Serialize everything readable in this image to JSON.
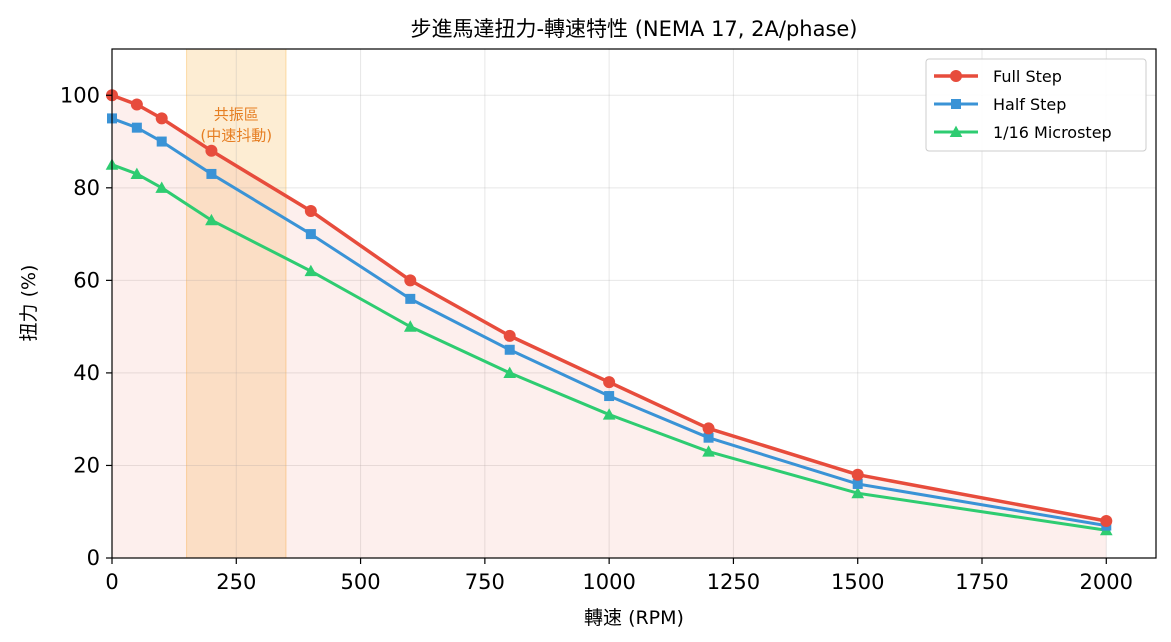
{
  "chart_data": {
    "type": "line",
    "title": "步進馬達扭力-轉速特性 (NEMA 17, 2A/phase)",
    "xlabel": "轉速 (RPM)",
    "ylabel": "扭力 (%)",
    "xlim": [
      0,
      2100
    ],
    "ylim": [
      0,
      110
    ],
    "xticks": [
      0,
      250,
      500,
      750,
      1000,
      1250,
      1500,
      1750,
      2000
    ],
    "yticks": [
      0,
      20,
      40,
      60,
      80,
      100
    ],
    "grid": true,
    "legend_position": "top-right",
    "x": [
      0,
      50,
      100,
      200,
      400,
      600,
      800,
      1000,
      1200,
      1500,
      2000
    ],
    "series": [
      {
        "name": "Full Step",
        "values": [
          100,
          98,
          95,
          88,
          75,
          60,
          48,
          38,
          28,
          18,
          8
        ],
        "color": "#e74c3c",
        "marker": "circle",
        "fill_under": true
      },
      {
        "name": "Half Step",
        "values": [
          95,
          93,
          90,
          83,
          70,
          56,
          45,
          35,
          26,
          16,
          7
        ],
        "color": "#3a93d6",
        "marker": "square"
      },
      {
        "name": "1/16 Microstep",
        "values": [
          85,
          83,
          80,
          73,
          62,
          50,
          40,
          31,
          23,
          14,
          6
        ],
        "color": "#2ecc71",
        "marker": "triangle"
      }
    ],
    "annotations": [
      {
        "type": "band",
        "x_range": [
          150,
          350
        ],
        "color": "#f5a623",
        "label_line1": "共振區",
        "label_line2": "(中速抖動)",
        "label_color": "#e67e22"
      }
    ]
  }
}
